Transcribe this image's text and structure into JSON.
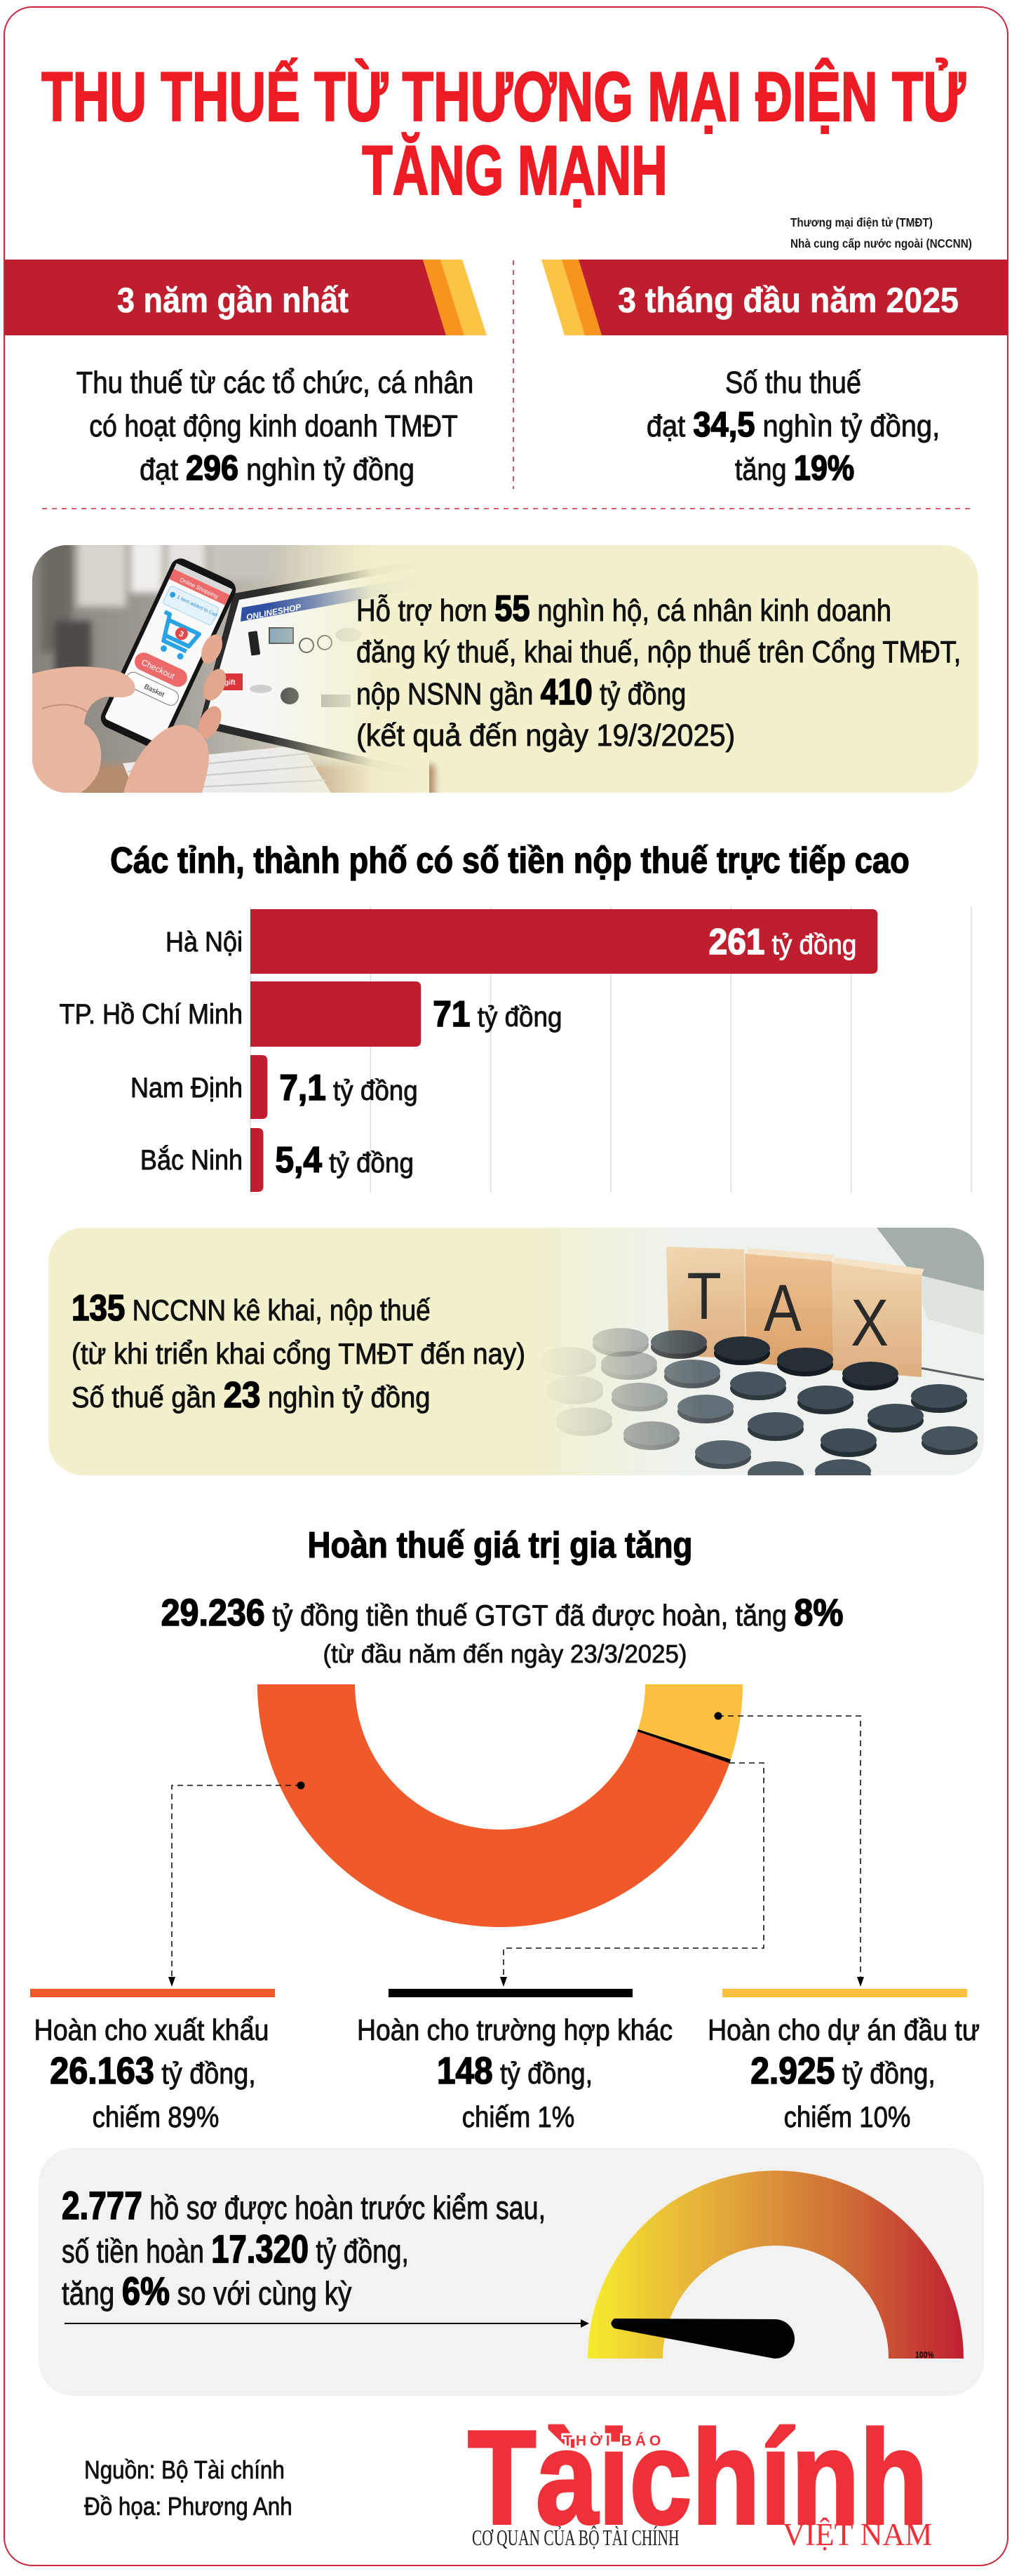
{
  "header": {
    "title_line1": "THU THUẾ TỪ THƯƠNG MẠI ĐIỆN TỬ",
    "title_line2": "TĂNG MẠNH",
    "abbreviations": [
      "Thương mại điện tử (TMĐT)",
      "Nhà cung cấp nước ngoài (NCCNN)"
    ]
  },
  "summary": {
    "left": {
      "banner": "3 năm gần nhất",
      "line1": "Thu thuế từ các tổ chức, cá nhân",
      "line2": "có hoạt động kinh doanh TMĐT",
      "line3": {
        "pre": "đạt ",
        "num": "296",
        "post": " nghìn tỷ đồng"
      }
    },
    "right": {
      "banner": "3 tháng đầu năm 2025",
      "line1": "Số thu thuế",
      "line2": {
        "pre": "đạt ",
        "num": "34,5",
        "post": " nghìn tỷ đồng,"
      },
      "line3": {
        "pre": "tăng ",
        "num": "19%"
      }
    }
  },
  "support": {
    "line1": {
      "pre": "Hỗ trợ hơn ",
      "num": "55",
      "post": " nghìn hộ, cá nhân kinh doanh"
    },
    "line2": "đăng ký thuế, khai thuế, nộp thuế trên Cổng TMĐT,",
    "line3": {
      "pre": "nộp NSNN gần ",
      "num": "410",
      "post": " tỷ đồng"
    },
    "line4": "(kết quả đến ngày 19/3/2025)",
    "photo_text": {
      "phone_header": "Online Shopping",
      "phone_notice": "1 item added to Cart",
      "cart_badge": "3",
      "checkout": "Checkout",
      "basket": "Basket",
      "shop_name": "ONLINESHOP",
      "gift": "gift"
    }
  },
  "foreign_suppliers": {
    "line1": {
      "num": "135",
      "post": " NCCNN kê khai, nộp thuế"
    },
    "line2": "(từ khi triển khai cổng TMĐT đến nay)",
    "line3": {
      "pre": "Số thuế gần ",
      "num": "23",
      "post": " nghìn tỷ đồng"
    },
    "photo_letters": [
      "T",
      "A",
      "X"
    ]
  },
  "vat_refund": {
    "title": "Hoàn thuế giá trị gia tăng",
    "total_line": {
      "num": "29.236",
      "mid": " tỷ đồng tiền thuế GTGT đã được hoàn, tăng ",
      "pct": "8%"
    },
    "period": "(từ đầu năm đến ngày 23/3/2025)",
    "breakdown": [
      {
        "label": "Hoàn cho xuất khẩu",
        "amount": "26.163",
        "unit": " tỷ đồng,",
        "share": "chiếm 89%",
        "color": "#f05a2b"
      },
      {
        "label": "Hoàn cho trường hợp khác",
        "amount": "148",
        "unit": " tỷ đồng,",
        "share": "chiếm 1%",
        "color": "#000000"
      },
      {
        "label": "Hoàn cho dự án đầu tư",
        "amount": "2.925",
        "unit": " tỷ đồng,",
        "share": "chiếm 10%",
        "color": "#fdc041"
      }
    ]
  },
  "pre_refund": {
    "line1": {
      "num": "2.777",
      "post": " hồ sơ được hoàn trước kiểm sau,"
    },
    "line2": {
      "pre": "số tiền hoàn ",
      "num": "17.320",
      "post": " tỷ đồng,"
    },
    "line3": {
      "pre": "tăng ",
      "num": "6%",
      "post": " so với cùng kỳ"
    },
    "gauge_max_label": "100%"
  },
  "footer": {
    "source": "Nguồn: Bộ Tài chính",
    "graphics": "Đồ họa: Phương Anh",
    "logo": {
      "top": "THỜI BÁO",
      "main": "Tàichính",
      "tagline": "CƠ QUAN CỦA BỘ TÀI CHÍNH",
      "country": "VIỆT NAM"
    }
  },
  "colors": {
    "title_red": "#ed1c24",
    "banner_red": "#be1e2d",
    "stripe_orange": "#f7941d",
    "stripe_yellow": "#fdc345",
    "box_cream": "#f3f0cd",
    "box_gray": "#f2f2f2",
    "frame": "#c9283f",
    "logo_red": "#ee3139"
  },
  "chart_data": [
    {
      "type": "bar",
      "orientation": "horizontal",
      "title": "Các tỉnh, thành phố có số tiền nộp thuế trực tiếp cao",
      "categories": [
        "Hà Nội",
        "TP. Hồ Chí Minh",
        "Nam Định",
        "Bắc Ninh"
      ],
      "values": [
        261,
        71,
        7.1,
        5.4
      ],
      "value_labels": [
        "261",
        "71",
        "7,1",
        "5,4"
      ],
      "unit_label": " tỷ đồng",
      "unit": "tỷ đồng",
      "xlabel": "",
      "ylabel": "",
      "xlim": [
        0,
        300
      ],
      "gridlines": [
        50,
        100,
        150,
        200,
        250,
        300
      ],
      "grid": true,
      "color": "#be1e2d"
    },
    {
      "type": "pie",
      "subtype": "half-donut",
      "title": "Hoàn thuế giá trị gia tăng",
      "categories": [
        "Hoàn cho xuất khẩu",
        "Hoàn cho trường hợp khác",
        "Hoàn cho dự án đầu tư"
      ],
      "values": [
        26163,
        148,
        2925
      ],
      "percent_labels": [
        89,
        1,
        10
      ],
      "total": 29236,
      "unit": "tỷ đồng",
      "colors": [
        "#f05a2b",
        "#000000",
        "#fdc041"
      ],
      "legend_position": "bottom"
    }
  ]
}
